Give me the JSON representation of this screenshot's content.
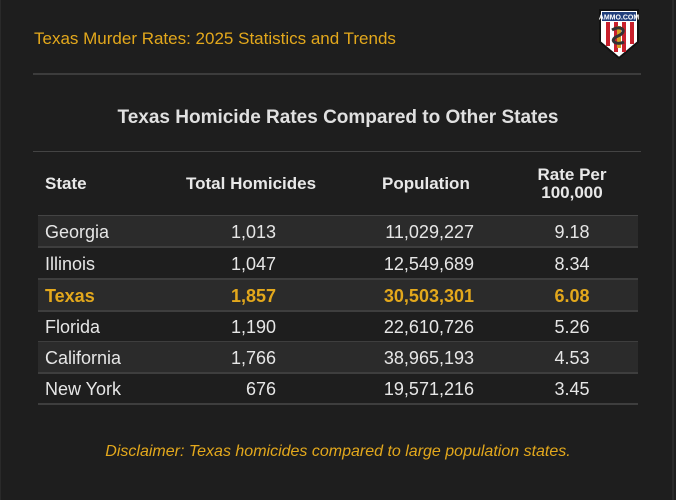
{
  "header": {
    "title": "Texas Murder Rates: 2025 Statistics and Trends",
    "logo_text": "AMMO.COM"
  },
  "table": {
    "title": "Texas Homicide Rates Compared to Other States",
    "columns": [
      "State",
      "Total Homicides",
      "Population",
      "Rate Per 100,000"
    ],
    "rows": [
      {
        "state": "Georgia",
        "homicides": "1,013",
        "population": "11,029,227",
        "rate": "9.18"
      },
      {
        "state": "Illinois",
        "homicides": "1,047",
        "population": "12,549,689",
        "rate": "8.34"
      },
      {
        "state": "Texas",
        "homicides": "1,857",
        "population": "30,503,301",
        "rate": "6.08",
        "highlighted": true
      },
      {
        "state": "Florida",
        "homicides": "1,190",
        "population": "22,610,726",
        "rate": "5.26"
      },
      {
        "state": "California",
        "homicides": "1,766",
        "population": "38,965,193",
        "rate": "4.53"
      },
      {
        "state": "New York",
        "homicides": "676",
        "population": "19,571,216",
        "rate": "3.45"
      }
    ]
  },
  "disclaimer": "Disclaimer: Texas homicides compared to large population states.",
  "colors": {
    "accent": "#e3a81c",
    "background": "#1e1e1e",
    "row_alt": "#2b2b2b"
  }
}
